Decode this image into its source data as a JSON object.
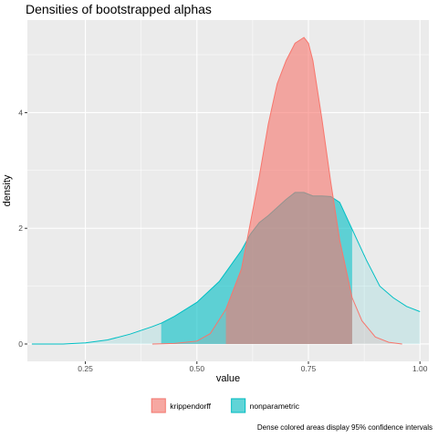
{
  "chart_data": {
    "type": "area",
    "title": "Densities of bootstrapped alphas",
    "xlabel": "value",
    "ylabel": "density",
    "xlim": [
      0.12,
      1.02
    ],
    "ylim": [
      -0.3,
      5.6
    ],
    "x_ticks": [
      0.25,
      0.5,
      0.75,
      1.0
    ],
    "x_tick_labels": [
      "0.25",
      "0.50",
      "0.75",
      "1.00"
    ],
    "y_ticks": [
      0,
      2,
      4
    ],
    "y_tick_labels": [
      "0",
      "2",
      "4"
    ],
    "grid": true,
    "legend_position": "bottom",
    "caption": "Dense colored areas display 95% confidence intervals",
    "series": [
      {
        "name": "krippendorff",
        "color": "#F8766D",
        "ci": [
          0.565,
          0.848
        ],
        "x": [
          0.4,
          0.45,
          0.5,
          0.53,
          0.565,
          0.6,
          0.62,
          0.64,
          0.66,
          0.68,
          0.7,
          0.72,
          0.74,
          0.75,
          0.76,
          0.78,
          0.8,
          0.82,
          0.848,
          0.87,
          0.9,
          0.93,
          0.96
        ],
        "y": [
          0.0,
          0.01,
          0.05,
          0.18,
          0.6,
          1.3,
          2.1,
          2.9,
          3.8,
          4.5,
          4.9,
          5.2,
          5.3,
          5.2,
          4.9,
          3.9,
          2.8,
          1.8,
          0.8,
          0.4,
          0.12,
          0.03,
          0.0
        ]
      },
      {
        "name": "nonparametric",
        "color": "#00BFC4",
        "ci": [
          0.42,
          0.848
        ],
        "x": [
          0.13,
          0.2,
          0.25,
          0.3,
          0.35,
          0.4,
          0.42,
          0.45,
          0.5,
          0.55,
          0.6,
          0.62,
          0.64,
          0.66,
          0.68,
          0.7,
          0.72,
          0.74,
          0.76,
          0.78,
          0.8,
          0.82,
          0.85,
          0.88,
          0.91,
          0.94,
          0.97,
          1.0
        ],
        "y": [
          0.0,
          0.0,
          0.02,
          0.07,
          0.17,
          0.3,
          0.36,
          0.48,
          0.72,
          1.08,
          1.62,
          1.9,
          2.1,
          2.22,
          2.36,
          2.5,
          2.62,
          2.62,
          2.56,
          2.56,
          2.55,
          2.45,
          1.95,
          1.45,
          1.0,
          0.8,
          0.65,
          0.56
        ]
      }
    ]
  }
}
